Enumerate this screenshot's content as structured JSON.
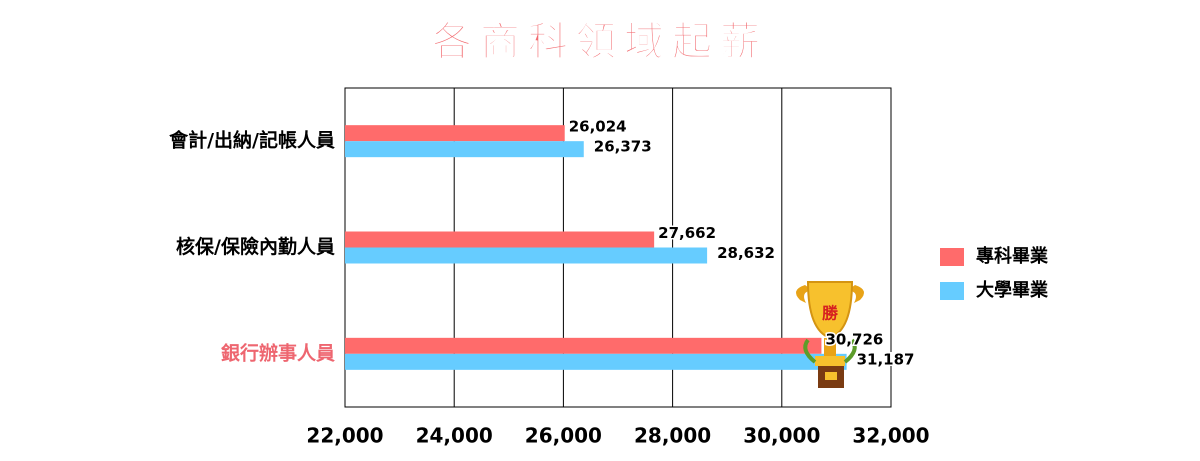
{
  "chart_data": {
    "type": "hbar",
    "title": "各商科領域起薪",
    "categories": [
      "會計/出納/記帳人員",
      "核保/保險內勤人員",
      "銀行辦事人員"
    ],
    "category_colors": [
      "#000000",
      "#000000",
      "#ee6670"
    ],
    "series": [
      {
        "name": "專科畢業",
        "color": "#ff6b6b",
        "values": [
          26024,
          27662,
          30726
        ],
        "value_labels": [
          "26,024",
          "27,662",
          "30,726"
        ]
      },
      {
        "name": "大學畢業",
        "color": "#66ccff",
        "values": [
          26373,
          28632,
          31187
        ],
        "value_labels": [
          "26,373",
          "28,632",
          "31,187"
        ]
      }
    ],
    "xlim": [
      22000,
      32000
    ],
    "xticks": [
      {
        "value": 22000,
        "label": "22,000"
      },
      {
        "value": 24000,
        "label": "24,000"
      },
      {
        "value": 26000,
        "label": "26,000"
      },
      {
        "value": 28000,
        "label": "28,000"
      },
      {
        "value": 30000,
        "label": "30,000"
      },
      {
        "value": 32000,
        "label": "32,000"
      }
    ],
    "grid": true,
    "legend": "right",
    "annotation": "勝"
  }
}
